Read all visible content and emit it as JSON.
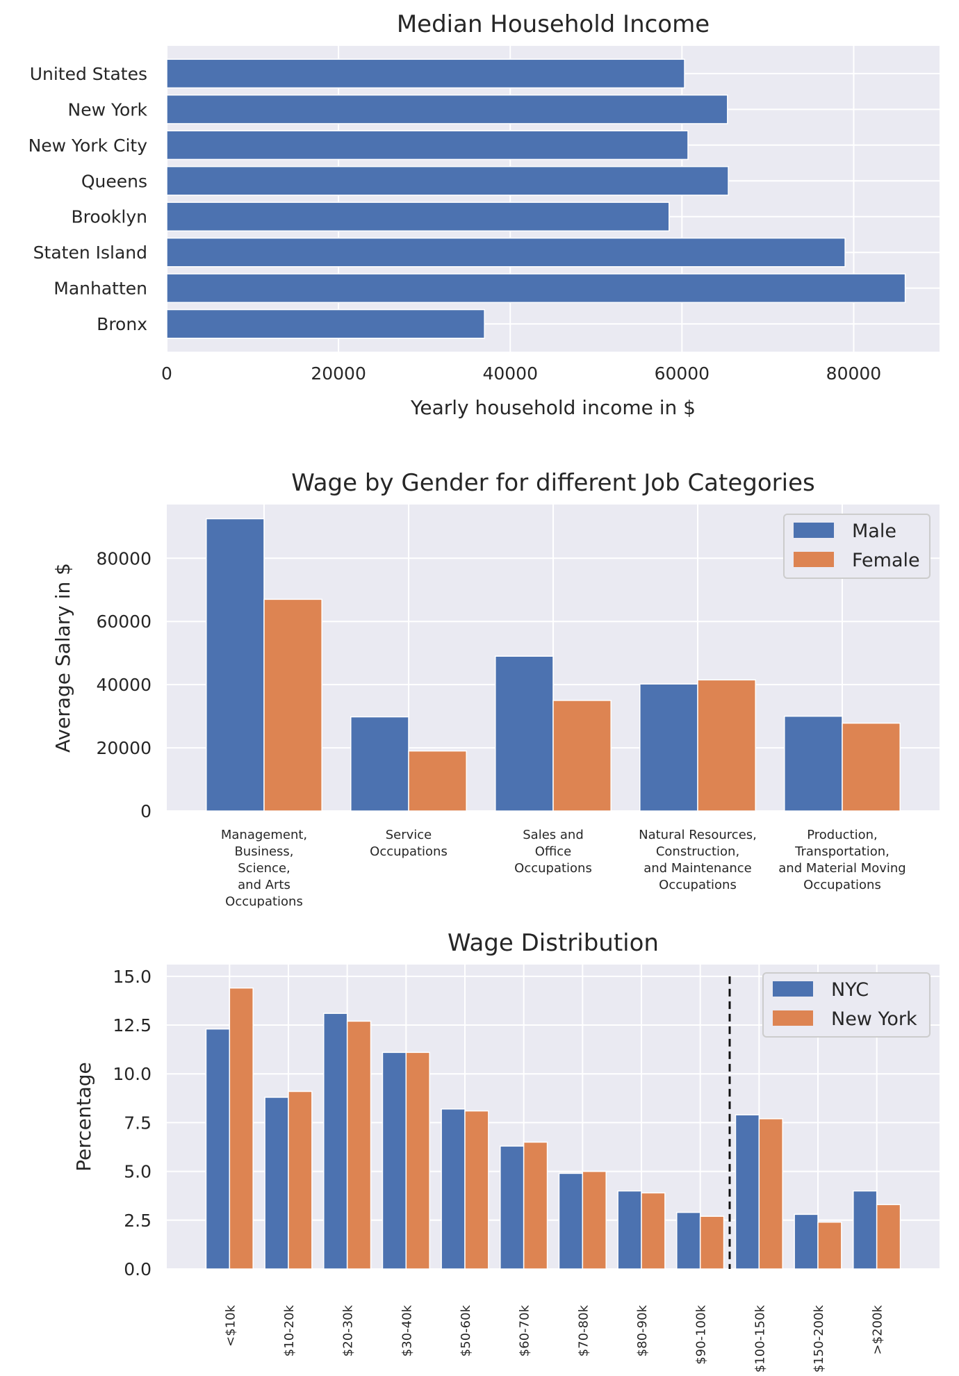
{
  "colors": {
    "blue": "#4c72b0",
    "orange": "#dd8452",
    "panel": "#eaeaf2",
    "grid": "#ffffff"
  },
  "chart_data": [
    {
      "type": "bar",
      "orientation": "horizontal",
      "title": "Median Household Income",
      "xlabel": "Yearly household income in $",
      "ylabel": "",
      "categories": [
        "United States",
        "New York",
        "New York City",
        "Queens",
        "Brooklyn",
        "Staten Island",
        "Manhatten",
        "Bronx"
      ],
      "values": [
        60300,
        65300,
        60700,
        65400,
        58500,
        79000,
        86000,
        37000
      ],
      "xlim": [
        0,
        90000
      ],
      "xticks": [
        0,
        20000,
        40000,
        60000,
        80000
      ],
      "xtick_labels": [
        "0",
        "20000",
        "40000",
        "60000",
        "80000"
      ],
      "grid": true
    },
    {
      "type": "bar",
      "title": "Wage by Gender for different Job Categories",
      "xlabel": "",
      "ylabel": "Average Salary in $",
      "categories": [
        [
          "Management,",
          "Business,",
          "Science,",
          "and Arts",
          "Occupations"
        ],
        [
          "Service",
          "Occupations"
        ],
        [
          "Sales and",
          "Office",
          "Occupations"
        ],
        [
          "Natural Resources,",
          "Construction,",
          "and Maintenance",
          "Occupations"
        ],
        [
          "Production,",
          "Transportation,",
          "and Material Moving",
          "Occupations"
        ]
      ],
      "series": [
        {
          "name": "Male",
          "values": [
            92500,
            29800,
            49000,
            40200,
            30000
          ]
        },
        {
          "name": "Female",
          "values": [
            67000,
            19000,
            35000,
            41500,
            27800
          ]
        }
      ],
      "ylim": [
        0,
        97000
      ],
      "yticks": [
        0,
        20000,
        40000,
        60000,
        80000
      ],
      "ytick_labels": [
        "0",
        "20000",
        "40000",
        "60000",
        "80000"
      ],
      "legend": "top-right",
      "grid": true
    },
    {
      "type": "bar",
      "title": "Wage Distribution",
      "xlabel": "",
      "ylabel": "Percentage",
      "categories": [
        "<$10k",
        "$10-20k",
        "$20-30k",
        "$30-40k",
        "$50-60k",
        "$60-70k",
        "$70-80k",
        "$80-90k",
        "$90-100k",
        "$100-150k",
        "$150-200k",
        ">$200k"
      ],
      "series": [
        {
          "name": "NYC",
          "values": [
            12.3,
            8.8,
            13.1,
            11.1,
            8.2,
            6.3,
            4.9,
            4.0,
            2.9,
            7.9,
            2.8,
            4.0
          ]
        },
        {
          "name": "New York",
          "values": [
            14.4,
            9.1,
            12.7,
            11.1,
            8.1,
            6.5,
            5.0,
            3.9,
            2.7,
            7.7,
            2.4,
            3.3
          ]
        }
      ],
      "ylim": [
        0,
        15.6
      ],
      "yticks": [
        0,
        2.5,
        5,
        7.5,
        10,
        12.5,
        15
      ],
      "ytick_labels": [
        "0.0",
        "2.5",
        "5.0",
        "7.5",
        "10.0",
        "12.5",
        "15.0"
      ],
      "reference_line": {
        "style": "dashed",
        "after_category_index": 8
      },
      "legend": "top-right",
      "grid": true
    }
  ]
}
